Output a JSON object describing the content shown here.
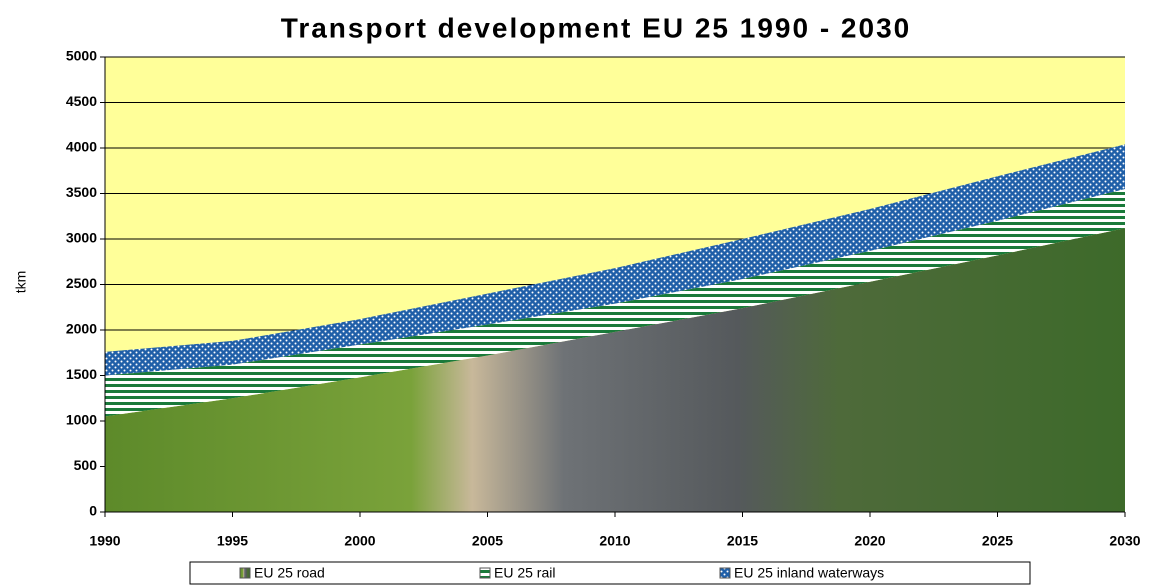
{
  "chart_data": {
    "type": "stacked_area",
    "title": "Transport development EU 25 1990 - 2030",
    "y_label": "tkm",
    "x": [
      1990,
      1995,
      2000,
      2005,
      2010,
      2015,
      2020,
      2025,
      2030
    ],
    "series": [
      {
        "name": "EU 25 road",
        "color": "#6b8f3a",
        "values": [
          1050,
          1250,
          1480,
          1720,
          1980,
          2240,
          2530,
          2820,
          3120
        ]
      },
      {
        "name": "EU 25 rail",
        "color": "#1a7a3a",
        "values": [
          450,
          370,
          360,
          340,
          310,
          320,
          340,
          380,
          430
        ]
      },
      {
        "name": "EU 25 inland waterways",
        "color": "#1f5fa8",
        "values": [
          260,
          260,
          280,
          340,
          390,
          440,
          460,
          490,
          490
        ]
      }
    ],
    "xlim": [
      1990,
      2030
    ],
    "xticks": [
      1990,
      1995,
      2000,
      2005,
      2010,
      2015,
      2020,
      2025,
      2030
    ],
    "ylim": [
      0,
      5000
    ],
    "yticks": [
      0,
      500,
      1000,
      1500,
      2000,
      2500,
      3000,
      3500,
      4000,
      4500,
      5000
    ],
    "grid": true,
    "background": "#ffff99",
    "legend": "bottom"
  }
}
